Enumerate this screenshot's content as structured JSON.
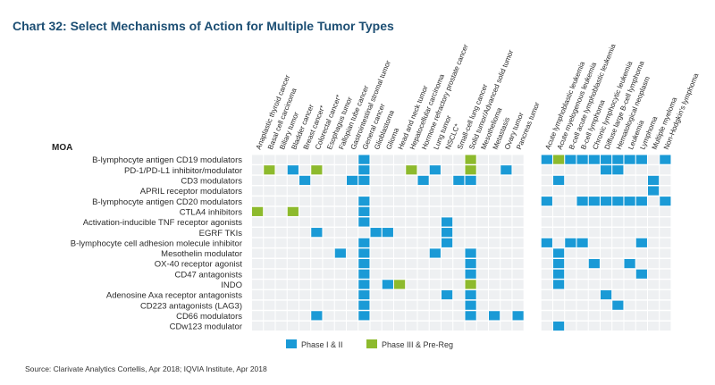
{
  "title": "Chart 32: Select Mechanisms of Action for Multiple Tumor Types",
  "source": "Source: Clarivate Analytics Cortellis, Apr 2018; IQVIA Institute, Apr 2018",
  "colors": {
    "phase1_2": "#1a9ad6",
    "phase3_prereg": "#8dba2d",
    "grid": "#eef0f2",
    "title": "#1c4e73"
  },
  "chart_data": {
    "type": "heatmap",
    "row_header": "MOA",
    "columns": [
      "Anaplastic thyroid cancer",
      "Basal cell carcinoma",
      "Biliary tumor",
      "Bladder cancer",
      "Breast cancer*",
      "Colorectal cancer*",
      "Esophagus tumor",
      "Fallopian tube cancer",
      "Gastrointestinal stromal tumor",
      "General cancer",
      "Glioblastoma",
      "Glioma",
      "Head and neck tumor",
      "Hepatocellular carcinoma",
      "Hormone refractory prostate cancer",
      "Lung tumor",
      "NSCLC*",
      "Small-cell lung cancer",
      "Solid tumor/Advanced solid tumor",
      "Mesothelioma",
      "Metastasis",
      "Ovary tumor",
      "Pancreas tumor",
      "Acute lymphoblastic leukemia",
      "Acute myelogenous leukemia",
      "B-cell acute lymphoblastic leukemia",
      "B-cell lymphoma",
      "Chronic lymphocytic leukemia",
      "Diffuse large B-cell lymphoma",
      "Hematological neoplasm",
      "Leukemia",
      "Lymphoma",
      "Multiple myeloma",
      "Non-Hodgkin's lymphoma"
    ],
    "rows": [
      "B-lymphocyte antigen CD19 modulators",
      "PD-1/PD-L1 inhibitor/modulator",
      "CD3 modulators",
      "APRIL receptor modulators",
      "B-lymphocyte antigen CD20 modulators",
      "CTLA4 inhibitors",
      "Activation-inducible TNF receptor agonists",
      "EGRF TKIs",
      "B-lymphocyte cell adhesion molecule inhibitor",
      "Mesothelin modulator",
      "OX-40 receptor agonist",
      "CD47 antagonists",
      "INDO",
      "Adenosine Axa receptor antagonists",
      "CD223 antagonists (LAG3)",
      "CD66 modulators",
      "CDw123 modulator"
    ],
    "legend": [
      {
        "key": 1,
        "label": "Phase I & II"
      },
      {
        "key": 2,
        "label": "Phase III & Pre-Reg"
      }
    ],
    "cells": [
      [
        0,
        0,
        0,
        0,
        0,
        0,
        0,
        0,
        0,
        1,
        0,
        0,
        0,
        0,
        0,
        0,
        0,
        0,
        2,
        0,
        0,
        0,
        0,
        1,
        2,
        1,
        1,
        1,
        1,
        1,
        1,
        1,
        0,
        1
      ],
      [
        0,
        2,
        0,
        1,
        0,
        2,
        0,
        0,
        0,
        1,
        0,
        0,
        0,
        2,
        0,
        1,
        0,
        0,
        2,
        0,
        0,
        1,
        0,
        0,
        0,
        0,
        0,
        0,
        1,
        1,
        0,
        0,
        0,
        0
      ],
      [
        0,
        0,
        0,
        0,
        1,
        0,
        0,
        0,
        1,
        1,
        0,
        0,
        0,
        0,
        1,
        0,
        0,
        1,
        1,
        0,
        0,
        0,
        0,
        0,
        1,
        0,
        0,
        0,
        0,
        0,
        0,
        0,
        1,
        0
      ],
      [
        0,
        0,
        0,
        0,
        0,
        0,
        0,
        0,
        0,
        0,
        0,
        0,
        0,
        0,
        0,
        0,
        0,
        0,
        0,
        0,
        0,
        0,
        0,
        0,
        0,
        0,
        0,
        0,
        0,
        0,
        0,
        0,
        1,
        0
      ],
      [
        0,
        0,
        0,
        0,
        0,
        0,
        0,
        0,
        0,
        1,
        0,
        0,
        0,
        0,
        0,
        0,
        0,
        0,
        0,
        0,
        0,
        0,
        0,
        1,
        0,
        0,
        1,
        1,
        1,
        1,
        1,
        1,
        0,
        1
      ],
      [
        2,
        0,
        0,
        2,
        0,
        0,
        0,
        0,
        0,
        1,
        0,
        0,
        0,
        0,
        0,
        0,
        0,
        0,
        0,
        0,
        0,
        0,
        0,
        0,
        0,
        0,
        0,
        0,
        0,
        0,
        0,
        0,
        0,
        0
      ],
      [
        0,
        0,
        0,
        0,
        0,
        0,
        0,
        0,
        0,
        1,
        0,
        0,
        0,
        0,
        0,
        0,
        1,
        0,
        0,
        0,
        0,
        0,
        0,
        0,
        0,
        0,
        0,
        0,
        0,
        0,
        0,
        0,
        0,
        0
      ],
      [
        0,
        0,
        0,
        0,
        0,
        1,
        0,
        0,
        0,
        0,
        1,
        1,
        0,
        0,
        0,
        0,
        1,
        0,
        0,
        0,
        0,
        0,
        0,
        0,
        0,
        0,
        0,
        0,
        0,
        0,
        0,
        0,
        0,
        0
      ],
      [
        0,
        0,
        0,
        0,
        0,
        0,
        0,
        0,
        0,
        1,
        0,
        0,
        0,
        0,
        0,
        0,
        1,
        0,
        0,
        0,
        0,
        0,
        0,
        1,
        0,
        1,
        1,
        0,
        0,
        0,
        0,
        1,
        0,
        0
      ],
      [
        0,
        0,
        0,
        0,
        0,
        0,
        0,
        1,
        0,
        1,
        0,
        0,
        0,
        0,
        0,
        1,
        0,
        0,
        1,
        0,
        0,
        0,
        0,
        0,
        1,
        0,
        0,
        0,
        0,
        0,
        0,
        0,
        0,
        0
      ],
      [
        0,
        0,
        0,
        0,
        0,
        0,
        0,
        0,
        0,
        1,
        0,
        0,
        0,
        0,
        0,
        0,
        0,
        0,
        1,
        0,
        0,
        0,
        0,
        0,
        1,
        0,
        0,
        1,
        0,
        0,
        1,
        0,
        0,
        0
      ],
      [
        0,
        0,
        0,
        0,
        0,
        0,
        0,
        0,
        0,
        1,
        0,
        0,
        0,
        0,
        0,
        0,
        0,
        0,
        1,
        0,
        0,
        0,
        0,
        0,
        1,
        0,
        0,
        0,
        0,
        0,
        0,
        1,
        0,
        0
      ],
      [
        0,
        0,
        0,
        0,
        0,
        0,
        0,
        0,
        0,
        1,
        0,
        1,
        2,
        0,
        0,
        0,
        0,
        0,
        2,
        0,
        0,
        0,
        0,
        0,
        1,
        0,
        0,
        0,
        0,
        0,
        0,
        0,
        0,
        0
      ],
      [
        0,
        0,
        0,
        0,
        0,
        0,
        0,
        0,
        0,
        1,
        0,
        0,
        0,
        0,
        0,
        0,
        1,
        0,
        1,
        0,
        0,
        0,
        0,
        0,
        0,
        0,
        0,
        0,
        1,
        0,
        0,
        0,
        0,
        0
      ],
      [
        0,
        0,
        0,
        0,
        0,
        0,
        0,
        0,
        0,
        1,
        0,
        0,
        0,
        0,
        0,
        0,
        0,
        0,
        1,
        0,
        0,
        0,
        0,
        0,
        0,
        0,
        0,
        0,
        0,
        1,
        0,
        0,
        0,
        0
      ],
      [
        0,
        0,
        0,
        0,
        0,
        1,
        0,
        0,
        0,
        1,
        0,
        0,
        0,
        0,
        0,
        0,
        0,
        0,
        1,
        0,
        1,
        0,
        1,
        0,
        0,
        0,
        0,
        0,
        0,
        0,
        0,
        0,
        0,
        0
      ],
      [
        0,
        0,
        0,
        0,
        0,
        0,
        0,
        0,
        0,
        0,
        0,
        0,
        0,
        0,
        0,
        0,
        0,
        0,
        0,
        0,
        0,
        0,
        0,
        0,
        1,
        0,
        0,
        0,
        0,
        0,
        0,
        0,
        0,
        0
      ]
    ]
  }
}
